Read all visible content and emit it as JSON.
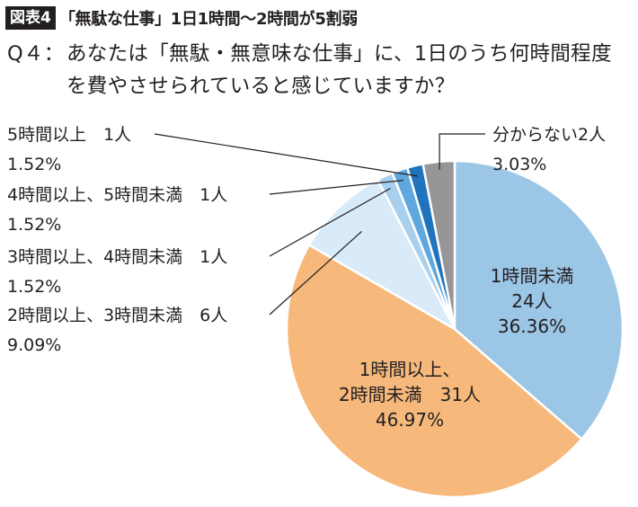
{
  "figure": {
    "badge": "図表4",
    "title": "「無駄な仕事」1日1時間〜2時間が5割弱"
  },
  "question": {
    "label": "Q４：",
    "text": "あなたは「無駄・無意味な仕事」に、1日のうち何時間程度を費やさせられていると感じていますか？"
  },
  "chart_data": {
    "type": "pie",
    "title": "",
    "unit": "人",
    "slices": [
      {
        "label": "1時間未満",
        "count": 24,
        "count_text": "24人",
        "percent": 36.36,
        "percent_text": "36.36%",
        "color": "#9cc6e6"
      },
      {
        "label": "1時間以上、2時間未満",
        "count": 31,
        "count_text": "31人",
        "percent": 46.97,
        "percent_text": "46.97%",
        "color": "#f6b97b"
      },
      {
        "label": "2時間以上、3時間未満",
        "count": 6,
        "count_text": "6人",
        "percent": 9.09,
        "percent_text": "9.09%",
        "color": "#d9eaf8"
      },
      {
        "label": "3時間以上、4時間未満",
        "count": 1,
        "count_text": "1人",
        "percent": 1.52,
        "percent_text": "1.52%",
        "color": "#a9cfee"
      },
      {
        "label": "4時間以上、5時間未満",
        "count": 1,
        "count_text": "1人",
        "percent": 1.52,
        "percent_text": "1.52%",
        "color": "#5ea8df"
      },
      {
        "label": "5時間以上",
        "count": 1,
        "count_text": "1人",
        "percent": 1.52,
        "percent_text": "1.52%",
        "color": "#1f74bd"
      },
      {
        "label": "分からない",
        "count": 2,
        "count_text": "2人",
        "percent": 3.03,
        "percent_text": "3.03%",
        "color": "#969696"
      }
    ]
  }
}
